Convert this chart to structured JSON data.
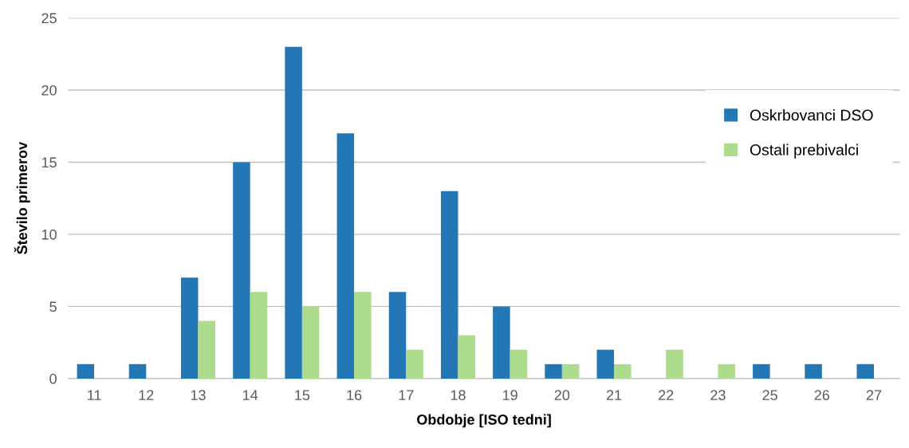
{
  "chart_data": {
    "type": "bar",
    "xlabel": "Obdobje [ISO tedni]",
    "ylabel": "Število primerov",
    "categories": [
      "11",
      "12",
      "13",
      "14",
      "15",
      "16",
      "17",
      "18",
      "19",
      "20",
      "21",
      "22",
      "23",
      "25",
      "26",
      "27"
    ],
    "series": [
      {
        "name": "Oskrbovanci DSO",
        "color": "#2277b4",
        "values": [
          1,
          1,
          7,
          15,
          23,
          17,
          6,
          13,
          5,
          1,
          2,
          0,
          0,
          1,
          1,
          1
        ]
      },
      {
        "name": "Ostali prebivalci",
        "color": "#addc8c",
        "values": [
          0,
          0,
          4,
          6,
          5,
          6,
          2,
          3,
          2,
          1,
          1,
          2,
          1,
          0,
          0,
          0
        ]
      }
    ],
    "ylim": [
      0,
      25
    ],
    "yticks": [
      0,
      5,
      10,
      15,
      20,
      25
    ],
    "grid": "y",
    "legend": "top right"
  }
}
